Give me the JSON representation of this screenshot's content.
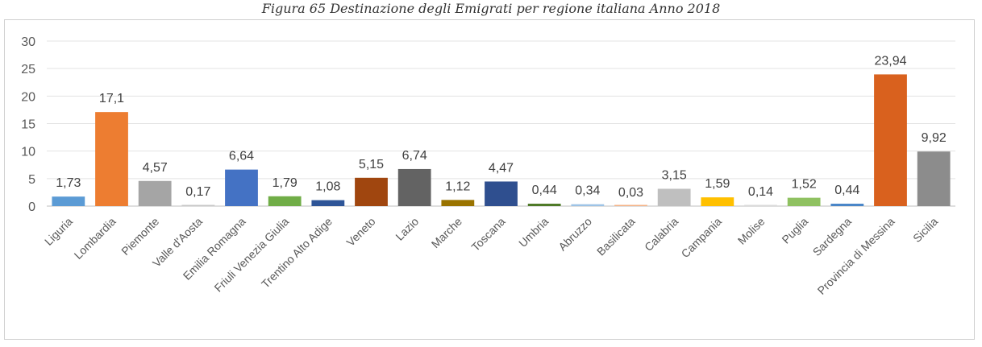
{
  "caption": "Figura 65 Destinazione degli Emigrati per regione italiana Anno 2018",
  "chart_data": {
    "type": "bar",
    "title": "Figura 65 Destinazione degli Emigrati per regione italiana Anno 2018",
    "xlabel": "",
    "ylabel": "",
    "ylim": [
      0,
      30
    ],
    "yticks": [
      "0",
      "5",
      "10",
      "15",
      "20",
      "25",
      "30"
    ],
    "grid": true,
    "legend": "none",
    "categories": [
      "Liguria",
      "Lombardia",
      "Piemonte",
      "Valle d'Aosta",
      "Emilia Romagna",
      "Friuli Venezia Giulia",
      "Trentino Alto Adige",
      "Veneto",
      "Lazio",
      "Marche",
      "Toscana",
      "Umbria",
      "Abruzzo",
      "Basilicata",
      "Calabria",
      "Campania",
      "Molise",
      "Puglia",
      "Sardegna",
      "Provincia di Messina",
      "Sicilia"
    ],
    "values": [
      1.73,
      17.1,
      4.57,
      0.17,
      6.64,
      1.79,
      1.08,
      5.15,
      6.74,
      1.12,
      4.47,
      0.44,
      0.34,
      0.03,
      3.15,
      1.59,
      0.14,
      1.52,
      0.44,
      23.94,
      9.92
    ],
    "data_labels": [
      "1,73",
      "17,1",
      "4,57",
      "0,17",
      "6,64",
      "1,79",
      "1,08",
      "5,15",
      "6,74",
      "1,12",
      "4,47",
      "0,44",
      "0,34",
      "0,03",
      "3,15",
      "1,59",
      "0,14",
      "1,52",
      "0,44",
      "23,94",
      "9,92"
    ],
    "colors": [
      "#5b9bd5",
      "#ed7d31",
      "#a5a5a5",
      "#c7c7c7",
      "#4472c4",
      "#70ad47",
      "#2e5597",
      "#a0460f",
      "#636363",
      "#997300",
      "#2f4f8f",
      "#4f7a28",
      "#9dc3e6",
      "#f4b183",
      "#bfbfbf",
      "#ffc000",
      "#d9d9d9",
      "#8fc161",
      "#4a86c8",
      "#d9611e",
      "#8c8c8c"
    ]
  }
}
